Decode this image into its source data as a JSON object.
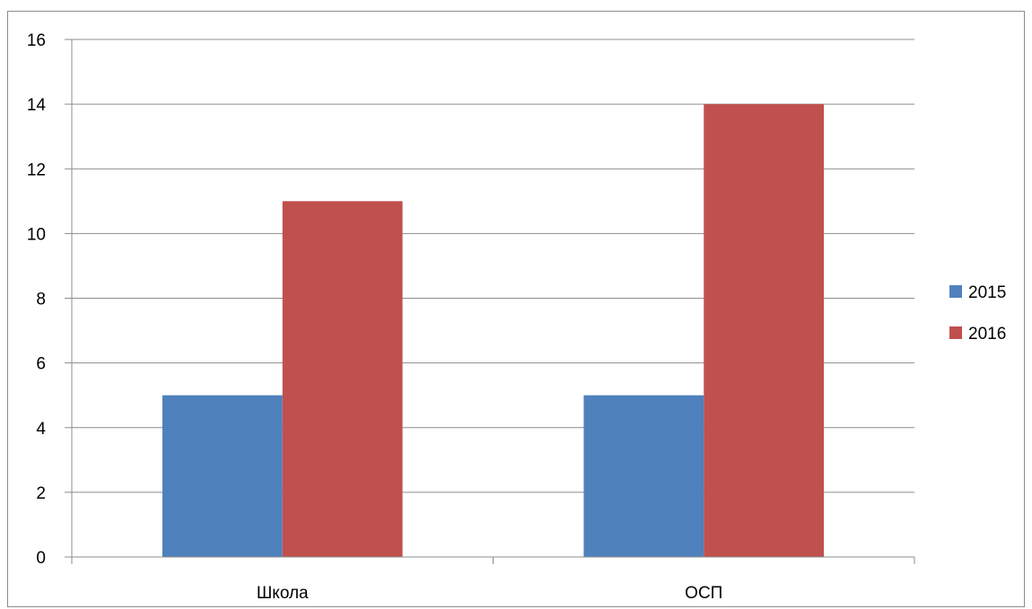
{
  "chart_data": {
    "type": "bar",
    "categories": [
      "Школа",
      "ОСП"
    ],
    "series": [
      {
        "name": "2015",
        "values": [
          5,
          5
        ],
        "color": "#4F81BD"
      },
      {
        "name": "2016",
        "values": [
          11,
          14
        ],
        "color": "#C0504D"
      }
    ],
    "ylim": [
      0,
      16
    ],
    "yticks": [
      0,
      2,
      4,
      6,
      8,
      10,
      12,
      14,
      16
    ],
    "grid": true,
    "legend_position": "right"
  }
}
